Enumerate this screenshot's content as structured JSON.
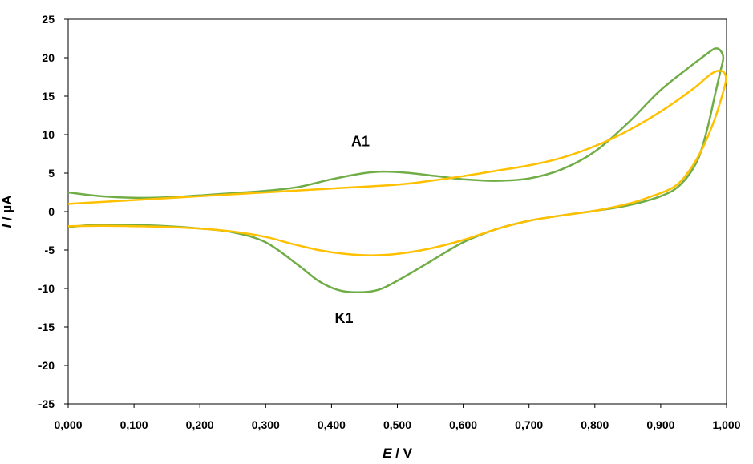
{
  "chart_data": {
    "type": "line",
    "title": "",
    "xlabel": {
      "italic": "E",
      "rest": " / V"
    },
    "ylabel": {
      "italic": "I",
      "rest": " / µA"
    },
    "xlim": [
      0,
      1
    ],
    "ylim": [
      -25,
      25
    ],
    "x_ticks": [
      {
        "value": 0.0,
        "label": "0,000"
      },
      {
        "value": 0.1,
        "label": "0,100"
      },
      {
        "value": 0.2,
        "label": "0,200"
      },
      {
        "value": 0.3,
        "label": "0,300"
      },
      {
        "value": 0.4,
        "label": "0,400"
      },
      {
        "value": 0.5,
        "label": "0,500"
      },
      {
        "value": 0.6,
        "label": "0,600"
      },
      {
        "value": 0.7,
        "label": "0,700"
      },
      {
        "value": 0.8,
        "label": "0,800"
      },
      {
        "value": 0.9,
        "label": "0,900"
      },
      {
        "value": 1.0,
        "label": "1,000"
      }
    ],
    "y_ticks": [
      {
        "value": 25,
        "label": "25"
      },
      {
        "value": 20,
        "label": "20"
      },
      {
        "value": 15,
        "label": "15"
      },
      {
        "value": 10,
        "label": "10"
      },
      {
        "value": 5,
        "label": "5"
      },
      {
        "value": 0,
        "label": "0"
      },
      {
        "value": -5,
        "label": "-5"
      },
      {
        "value": -10,
        "label": "-10"
      },
      {
        "value": -15,
        "label": "-15"
      },
      {
        "value": -20,
        "label": "-20"
      },
      {
        "value": -25,
        "label": "-25"
      }
    ],
    "grid": false,
    "legend": false,
    "series": [
      {
        "color": "#70ad47",
        "points": [
          [
            0.0,
            2.5
          ],
          [
            0.05,
            2.0
          ],
          [
            0.1,
            1.8
          ],
          [
            0.15,
            1.85
          ],
          [
            0.2,
            2.1
          ],
          [
            0.25,
            2.4
          ],
          [
            0.3,
            2.7
          ],
          [
            0.35,
            3.2
          ],
          [
            0.4,
            4.2
          ],
          [
            0.45,
            5.0
          ],
          [
            0.48,
            5.2
          ],
          [
            0.52,
            5.0
          ],
          [
            0.56,
            4.6
          ],
          [
            0.6,
            4.2
          ],
          [
            0.65,
            4.0
          ],
          [
            0.7,
            4.3
          ],
          [
            0.75,
            5.5
          ],
          [
            0.8,
            7.8
          ],
          [
            0.85,
            11.5
          ],
          [
            0.9,
            15.8
          ],
          [
            0.95,
            19.2
          ],
          [
            0.975,
            20.8
          ],
          [
            0.983,
            21.2
          ],
          [
            0.99,
            21.0
          ],
          [
            0.995,
            20.0
          ],
          [
            0.99,
            18.0
          ],
          [
            0.982,
            15.0
          ],
          [
            0.97,
            10.5
          ],
          [
            0.955,
            6.5
          ],
          [
            0.93,
            3.5
          ],
          [
            0.9,
            2.0
          ],
          [
            0.85,
            0.8
          ],
          [
            0.8,
            0.1
          ],
          [
            0.75,
            -0.5
          ],
          [
            0.7,
            -1.2
          ],
          [
            0.65,
            -2.3
          ],
          [
            0.6,
            -4.0
          ],
          [
            0.55,
            -6.5
          ],
          [
            0.5,
            -9.0
          ],
          [
            0.47,
            -10.2
          ],
          [
            0.44,
            -10.5
          ],
          [
            0.41,
            -10.2
          ],
          [
            0.38,
            -9.0
          ],
          [
            0.35,
            -7.0
          ],
          [
            0.3,
            -4.0
          ],
          [
            0.25,
            -2.7
          ],
          [
            0.2,
            -2.2
          ],
          [
            0.15,
            -1.9
          ],
          [
            0.1,
            -1.75
          ],
          [
            0.05,
            -1.7
          ],
          [
            0.0,
            -2.0
          ]
        ]
      },
      {
        "color": "#ffc000",
        "points": [
          [
            0.0,
            1.0
          ],
          [
            0.1,
            1.5
          ],
          [
            0.2,
            2.0
          ],
          [
            0.3,
            2.5
          ],
          [
            0.4,
            3.0
          ],
          [
            0.5,
            3.5
          ],
          [
            0.55,
            4.0
          ],
          [
            0.6,
            4.6
          ],
          [
            0.65,
            5.3
          ],
          [
            0.7,
            6.0
          ],
          [
            0.75,
            7.0
          ],
          [
            0.8,
            8.5
          ],
          [
            0.85,
            10.5
          ],
          [
            0.9,
            13.0
          ],
          [
            0.95,
            16.0
          ],
          [
            0.975,
            17.8
          ],
          [
            0.988,
            18.3
          ],
          [
            0.997,
            18.0
          ],
          [
            0.999,
            17.0
          ],
          [
            0.993,
            15.0
          ],
          [
            0.982,
            12.0
          ],
          [
            0.965,
            8.5
          ],
          [
            0.945,
            5.5
          ],
          [
            0.92,
            3.2
          ],
          [
            0.88,
            1.8
          ],
          [
            0.85,
            1.0
          ],
          [
            0.8,
            0.1
          ],
          [
            0.75,
            -0.5
          ],
          [
            0.7,
            -1.2
          ],
          [
            0.65,
            -2.3
          ],
          [
            0.6,
            -3.7
          ],
          [
            0.55,
            -4.8
          ],
          [
            0.5,
            -5.5
          ],
          [
            0.46,
            -5.7
          ],
          [
            0.42,
            -5.5
          ],
          [
            0.38,
            -5.0
          ],
          [
            0.34,
            -4.2
          ],
          [
            0.3,
            -3.3
          ],
          [
            0.25,
            -2.6
          ],
          [
            0.2,
            -2.2
          ],
          [
            0.15,
            -2.0
          ],
          [
            0.1,
            -1.9
          ],
          [
            0.05,
            -1.85
          ],
          [
            0.0,
            -1.9
          ]
        ]
      }
    ],
    "annotations": [
      {
        "text": "A1",
        "x": 0.43,
        "y": 8.5
      },
      {
        "text": "K1",
        "x": 0.405,
        "y": -14.5
      }
    ]
  }
}
